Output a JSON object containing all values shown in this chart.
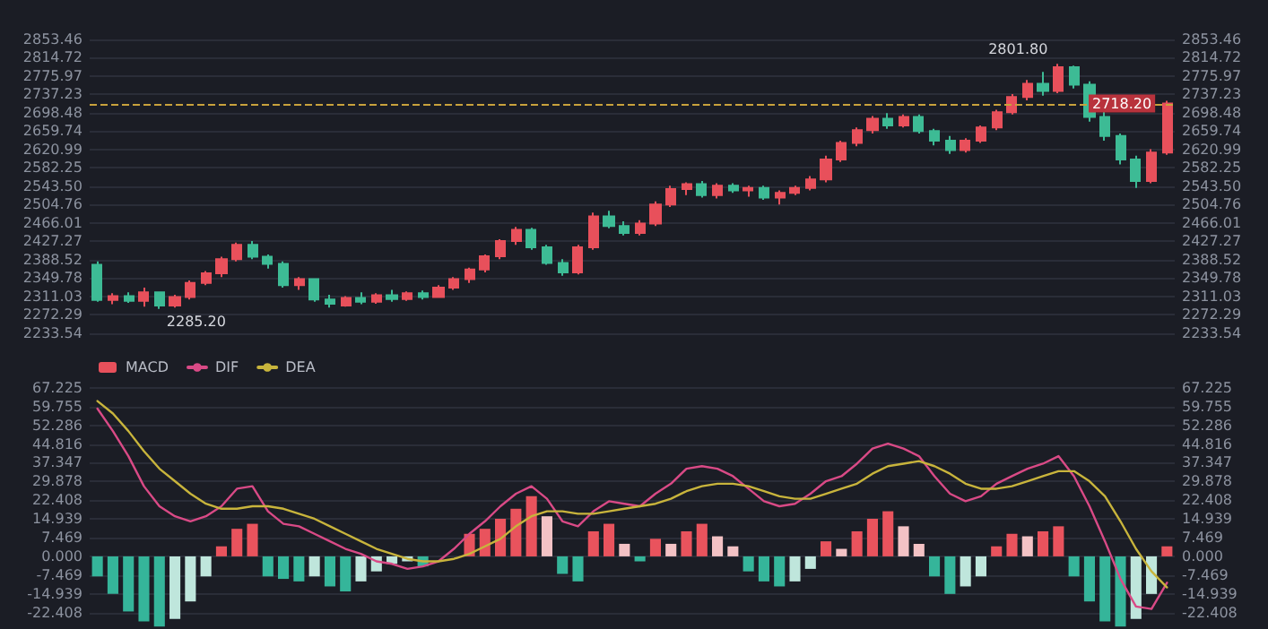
{
  "chart_data": [
    {
      "type": "candlestick",
      "categories": [
        null,
        null,
        null,
        null,
        null,
        null,
        null,
        null,
        null,
        null,
        null,
        null,
        null,
        null,
        null,
        null,
        null,
        null,
        null,
        null,
        null,
        null,
        null,
        null,
        null,
        null,
        null,
        null,
        null,
        null,
        null,
        null,
        null,
        null,
        null,
        null,
        null,
        null,
        null,
        null,
        null,
        null,
        null,
        null,
        null,
        null,
        null,
        null,
        null,
        null,
        null,
        null,
        null,
        null,
        null,
        null,
        null,
        null,
        null,
        null,
        null,
        null,
        null,
        null,
        null,
        null,
        null,
        null,
        null,
        null
      ],
      "ohlc": [
        [
          2378,
          2385,
          2300,
          2304
        ],
        [
          2304,
          2318,
          2295,
          2312
        ],
        [
          2312,
          2320,
          2298,
          2302
        ],
        [
          2302,
          2330,
          2290,
          2320
        ],
        [
          2320,
          2322,
          2285.2,
          2292
        ],
        [
          2292,
          2315,
          2288,
          2310
        ],
        [
          2310,
          2345,
          2305,
          2340
        ],
        [
          2340,
          2365,
          2335,
          2360
        ],
        [
          2360,
          2395,
          2352,
          2390
        ],
        [
          2390,
          2425,
          2385,
          2420
        ],
        [
          2420,
          2428,
          2390,
          2395
        ],
        [
          2395,
          2400,
          2370,
          2380
        ],
        [
          2380,
          2385,
          2330,
          2335
        ],
        [
          2335,
          2352,
          2325,
          2348
        ],
        [
          2348,
          2350,
          2300,
          2305
        ],
        [
          2305,
          2315,
          2288,
          2296
        ],
        [
          2292,
          2312,
          2290,
          2308
        ],
        [
          2308,
          2320,
          2295,
          2300
        ],
        [
          2300,
          2318,
          2296,
          2314
        ],
        [
          2314,
          2325,
          2300,
          2306
        ],
        [
          2306,
          2322,
          2302,
          2318
        ],
        [
          2318,
          2324,
          2305,
          2310
        ],
        [
          2310,
          2335,
          2308,
          2330
        ],
        [
          2330,
          2352,
          2325,
          2348
        ],
        [
          2348,
          2372,
          2340,
          2368
        ],
        [
          2368,
          2400,
          2362,
          2396
        ],
        [
          2396,
          2432,
          2390,
          2428
        ],
        [
          2428,
          2458,
          2420,
          2452
        ],
        [
          2452,
          2456,
          2410,
          2415
        ],
        [
          2415,
          2420,
          2378,
          2382
        ],
        [
          2382,
          2390,
          2355,
          2362
        ],
        [
          2362,
          2420,
          2358,
          2415
        ],
        [
          2415,
          2488,
          2410,
          2480
        ],
        [
          2480,
          2492,
          2455,
          2460
        ],
        [
          2460,
          2470,
          2440,
          2445
        ],
        [
          2445,
          2472,
          2440,
          2465
        ],
        [
          2465,
          2512,
          2460,
          2505
        ],
        [
          2505,
          2545,
          2500,
          2538
        ],
        [
          2538,
          2552,
          2525,
          2548
        ],
        [
          2548,
          2555,
          2520,
          2525
        ],
        [
          2525,
          2550,
          2518,
          2545
        ],
        [
          2545,
          2550,
          2530,
          2535
        ],
        [
          2535,
          2545,
          2522,
          2540
        ],
        [
          2540,
          2545,
          2515,
          2520
        ],
        [
          2520,
          2535,
          2505,
          2530
        ],
        [
          2530,
          2545,
          2525,
          2540
        ],
        [
          2540,
          2565,
          2535,
          2558
        ],
        [
          2558,
          2608,
          2552,
          2600
        ],
        [
          2600,
          2640,
          2595,
          2635
        ],
        [
          2635,
          2668,
          2628,
          2662
        ],
        [
          2662,
          2692,
          2655,
          2686
        ],
        [
          2686,
          2698,
          2665,
          2672
        ],
        [
          2672,
          2695,
          2668,
          2690
        ],
        [
          2690,
          2695,
          2655,
          2660
        ],
        [
          2660,
          2665,
          2630,
          2640
        ],
        [
          2640,
          2650,
          2612,
          2620
        ],
        [
          2620,
          2645,
          2615,
          2640
        ],
        [
          2640,
          2672,
          2635,
          2668
        ],
        [
          2668,
          2705,
          2662,
          2700
        ],
        [
          2700,
          2738,
          2695,
          2732
        ],
        [
          2732,
          2768,
          2725,
          2760
        ],
        [
          2760,
          2785,
          2735,
          2745
        ],
        [
          2745,
          2801.8,
          2740,
          2795
        ],
        [
          2795,
          2798,
          2750,
          2758
        ],
        [
          2758,
          2765,
          2680,
          2690
        ],
        [
          2690,
          2705,
          2640,
          2650
        ],
        [
          2650,
          2655,
          2590,
          2600
        ],
        [
          2600,
          2608,
          2540,
          2555
        ],
        [
          2555,
          2622,
          2550,
          2615
        ],
        [
          2615,
          2724,
          2610,
          2718.2
        ]
      ],
      "colors": [
        "#3dbb95",
        "#e8505b",
        "#3dbb95",
        "#e8505b",
        "#3dbb95",
        "#e8505b",
        "#e8505b",
        "#e8505b",
        "#e8505b",
        "#e8505b",
        "#3dbb95",
        "#3dbb95",
        "#3dbb95",
        "#e8505b",
        "#3dbb95",
        "#3dbb95",
        "#e8505b",
        "#3dbb95",
        "#e8505b",
        "#3dbb95",
        "#e8505b",
        "#3dbb95",
        "#e8505b",
        "#e8505b",
        "#e8505b",
        "#e8505b",
        "#e8505b",
        "#e8505b",
        "#3dbb95",
        "#3dbb95",
        "#3dbb95",
        "#e8505b",
        "#e8505b",
        "#3dbb95",
        "#3dbb95",
        "#e8505b",
        "#e8505b",
        "#e8505b",
        "#e8505b",
        "#3dbb95",
        "#e8505b",
        "#3dbb95",
        "#e8505b",
        "#3dbb95",
        "#e8505b",
        "#e8505b",
        "#e8505b",
        "#e8505b",
        "#e8505b",
        "#e8505b",
        "#e8505b",
        "#3dbb95",
        "#e8505b",
        "#3dbb95",
        "#3dbb95",
        "#3dbb95",
        "#e8505b",
        "#e8505b",
        "#e8505b",
        "#e8505b",
        "#e8505b",
        "#3dbb95",
        "#e8505b",
        "#3dbb95",
        "#3dbb95",
        "#3dbb95",
        "#3dbb95",
        "#3dbb95",
        "#e8505b",
        "#e8505b"
      ],
      "ylim": [
        2233.54,
        2853.46
      ],
      "yticks": [
        2233.54,
        2272.29,
        2311.03,
        2349.78,
        2388.52,
        2427.27,
        2466.01,
        2504.76,
        {
          "value": 2543.5,
          "label": "2543.50"
        },
        2582.25,
        2620.99,
        2659.74,
        2698.48,
        2737.23,
        2775.97,
        2814.72,
        2853.46
      ],
      "y2lim": [
        2233.54,
        2853.46
      ],
      "y2ticks": [
        2233.54,
        2272.29,
        2311.03,
        2349.78,
        2388.52,
        2427.27,
        2466.01,
        2504.76,
        {
          "value": 2543.5,
          "label": "2543.50"
        },
        2582.25,
        2620.99,
        2659.74,
        2698.48,
        2737.23,
        2775.97,
        2814.72,
        2853.46
      ],
      "tick_labels": "y",
      "grid": "y",
      "ref_lines": [
        {
          "axis": "y",
          "value": 2718.2,
          "label": "2718.20",
          "color": "#c8a23c",
          "line_style": "dashed"
        }
      ],
      "annotations": [
        "2801.80",
        "2285.20"
      ]
    },
    {
      "type": "bar",
      "categories": [
        null,
        null,
        null,
        null,
        null,
        null,
        null,
        null,
        null,
        null,
        null,
        null,
        null,
        null,
        null,
        null,
        null,
        null,
        null,
        null,
        null,
        null,
        null,
        null,
        null,
        null,
        null,
        null,
        null,
        null,
        null,
        null,
        null,
        null,
        null,
        null,
        null,
        null,
        null,
        null,
        null,
        null,
        null,
        null,
        null,
        null,
        null,
        null,
        null,
        null,
        null,
        null,
        null,
        null,
        null,
        null,
        null,
        null,
        null,
        null,
        null,
        null,
        null,
        null,
        null,
        null,
        null,
        null,
        null,
        null
      ],
      "series": [
        {
          "name": "MACD",
          "color": "#e8505b",
          "values": [
            -8,
            -15,
            -22,
            -26,
            -28,
            -25,
            -18,
            -8,
            4,
            11,
            13,
            -8,
            -9,
            -10,
            -8,
            -12,
            -14,
            -10,
            -6,
            -3,
            -2,
            -4,
            null,
            null,
            9,
            11,
            15,
            19,
            24,
            16,
            -7,
            -10,
            10,
            13,
            5,
            -2,
            7,
            5,
            10,
            13,
            8,
            4,
            -6,
            -10,
            -12,
            -10,
            -5,
            6,
            3,
            10,
            15,
            18,
            12,
            5,
            -8,
            -15,
            -12,
            -8,
            4,
            9,
            8,
            10,
            12,
            -8,
            -18,
            -26,
            -28,
            -25,
            -15,
            4
          ],
          "colors": [
            "#35b59a",
            "#35b59a",
            "#35b59a",
            "#35b59a",
            "#35b59a",
            "#bfe6dc",
            "#bfe6dc",
            "#bfe6dc",
            "#e9535d",
            "#e9535d",
            "#e9535d",
            "#35b59a",
            "#35b59a",
            "#35b59a",
            "#bfe6dc",
            "#35b59a",
            "#35b59a",
            "#bfe6dc",
            "#bfe6dc",
            "#bfe6dc",
            "#bfe6dc",
            "#35b59a",
            "#bfe6dc",
            "#bfe6dc",
            "#e9535d",
            "#e9535d",
            "#e9535d",
            "#e9535d",
            "#e9535d",
            "#f3c2c5",
            "#35b59a",
            "#35b59a",
            "#e9535d",
            "#e9535d",
            "#f3c2c5",
            "#35b59a",
            "#e9535d",
            "#f3c2c5",
            "#e9535d",
            "#e9535d",
            "#f3c2c5",
            "#f3c2c5",
            "#35b59a",
            "#35b59a",
            "#35b59a",
            "#bfe6dc",
            "#bfe6dc",
            "#e9535d",
            "#f3c2c5",
            "#e9535d",
            "#e9535d",
            "#e9535d",
            "#f3c2c5",
            "#f3c2c5",
            "#35b59a",
            "#35b59a",
            "#bfe6dc",
            "#bfe6dc",
            "#e9535d",
            "#e9535d",
            "#f3c2c5",
            "#e9535d",
            "#e9535d",
            "#35b59a",
            "#35b59a",
            "#35b59a",
            "#35b59a",
            "#bfe6dc",
            "#bfe6dc",
            "#e9535d"
          ]
        },
        {
          "name": "DIF",
          "type": "line",
          "color": "#d94a86",
          "values": [
            59,
            50,
            40,
            28,
            20,
            16,
            14,
            16,
            20,
            27,
            28,
            18,
            13,
            12,
            9,
            6,
            3,
            1,
            -2,
            -3,
            -5,
            -4,
            -2,
            3,
            9,
            14,
            20,
            25,
            28,
            23,
            14,
            12,
            18,
            22,
            21,
            20,
            25,
            29,
            35,
            36,
            35,
            32,
            27,
            22,
            20,
            21,
            25,
            30,
            32,
            37,
            43,
            45,
            43,
            40,
            32,
            25,
            22,
            24,
            29,
            32,
            35,
            37,
            40,
            32,
            20,
            6,
            -9,
            -20,
            -21,
            -10.5
          ]
        },
        {
          "name": "DEA",
          "type": "line",
          "color": "#c8b43c",
          "values": [
            62,
            57,
            50,
            42,
            35,
            30,
            25,
            21,
            19,
            19,
            20,
            20,
            19,
            17,
            15,
            12,
            9,
            6,
            3,
            1,
            -1,
            -2,
            -2,
            -1,
            1,
            4,
            7,
            12,
            16,
            18,
            18,
            17,
            17,
            18,
            19,
            20,
            21,
            23,
            26,
            28,
            29,
            29,
            28,
            26,
            24,
            23,
            23,
            25,
            27,
            29,
            33,
            36,
            37,
            38,
            36,
            33,
            29,
            27,
            27,
            28,
            30,
            32,
            34,
            34,
            30,
            24,
            14,
            3,
            -6,
            -12.4
          ]
        }
      ],
      "ylim": [
        -29,
        69
      ],
      "yticks": [
        {
          "value": -22.408,
          "label": "-22.408"
        },
        -14.939,
        -7.469,
        {
          "value": 0,
          "label": "0.000"
        },
        7.469,
        14.939,
        22.408,
        29.878,
        37.347,
        44.816,
        52.286,
        59.755,
        67.225
      ],
      "y2lim": [
        -29,
        69
      ],
      "y2ticks": [
        {
          "value": -22.408,
          "label": "-22.408"
        },
        -14.939,
        -7.469,
        {
          "value": 0,
          "label": "0.000"
        },
        7.469,
        14.939,
        22.408,
        29.878,
        37.347,
        44.816,
        52.286,
        59.755,
        67.225
      ],
      "tick_labels": "y",
      "grid": "y",
      "legend": "top left"
    }
  ]
}
